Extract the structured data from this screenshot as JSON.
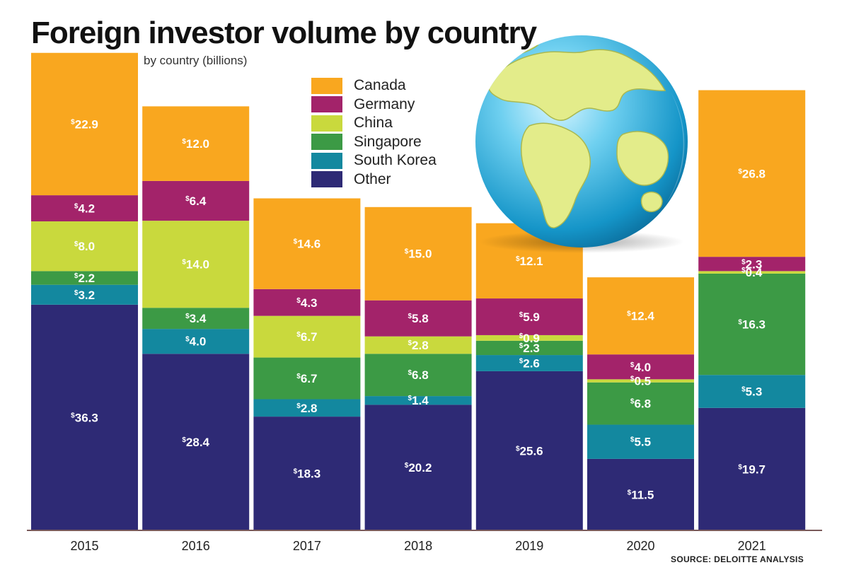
{
  "title": "Foreign investor volume by country",
  "subtitle": "by country (billions)",
  "source": "SOURCE: DELOITTE ANALYSIS",
  "currency_symbol": "$",
  "globe_icon": "globe-icon",
  "chart_data": {
    "type": "bar",
    "stacked": true,
    "categories": [
      "2015",
      "2016",
      "2017",
      "2018",
      "2019",
      "2020",
      "2021"
    ],
    "series": [
      {
        "name": "Other",
        "color": "#2e2a75",
        "values": [
          36.3,
          28.4,
          18.3,
          20.2,
          25.6,
          11.5,
          19.7
        ]
      },
      {
        "name": "South Korea",
        "color": "#13889f",
        "values": [
          3.2,
          4.0,
          2.8,
          1.4,
          2.6,
          5.5,
          5.3
        ]
      },
      {
        "name": "Singapore",
        "color": "#3c9a45",
        "values": [
          2.2,
          3.4,
          6.7,
          6.8,
          2.3,
          6.8,
          16.3
        ]
      },
      {
        "name": "China",
        "color": "#c9d93d",
        "values": [
          8.0,
          14.0,
          6.7,
          2.8,
          0.9,
          0.5,
          0.4
        ]
      },
      {
        "name": "Germany",
        "color": "#a3236a",
        "values": [
          4.2,
          6.4,
          4.3,
          5.8,
          5.9,
          4.0,
          2.3
        ]
      },
      {
        "name": "Canada",
        "color": "#f9a71f",
        "values": [
          22.9,
          12.0,
          14.6,
          15.0,
          12.1,
          12.4,
          26.8
        ]
      }
    ],
    "legend_order": [
      "Canada",
      "Germany",
      "China",
      "Singapore",
      "South Korea",
      "Other"
    ],
    "legend_position": "top-center",
    "ylim": [
      0,
      77
    ],
    "grid": false
  }
}
